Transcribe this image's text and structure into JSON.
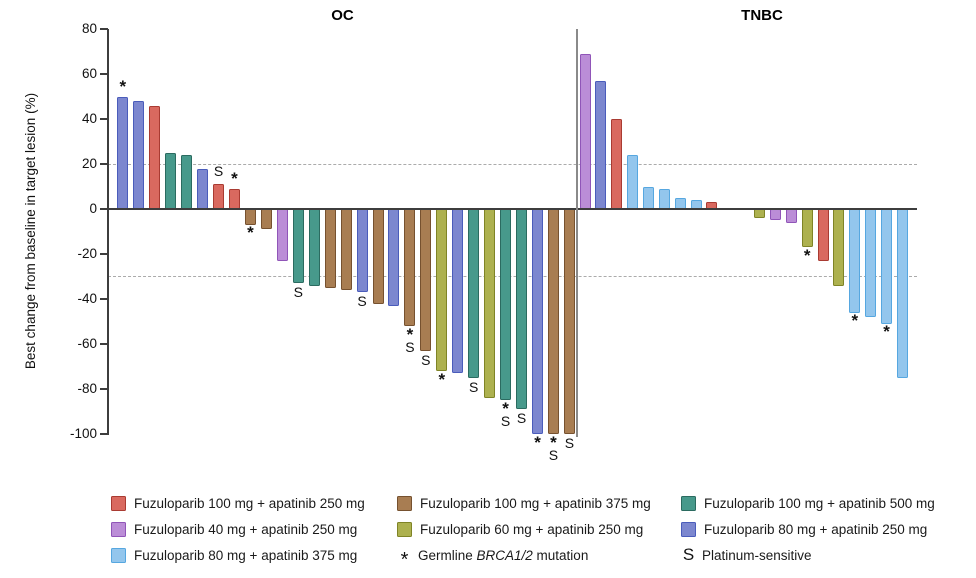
{
  "chart_data": {
    "type": "bar",
    "variant": "waterfall",
    "ylabel": "Best change from baseline in target lesion (%)",
    "ylim": [
      -100,
      80
    ],
    "yticks": [
      80,
      60,
      40,
      20,
      0,
      -20,
      -40,
      -60,
      -80,
      -100
    ],
    "reference_lines": [
      20,
      -30
    ],
    "grid": false,
    "treatments": {
      "fuzuloparib-100-apatinib-250": {
        "label": "Fuzuloparib 100 mg + apatinib 250 mg",
        "fill": "#D9695F",
        "edge": "#A93B32"
      },
      "fuzuloparib-100-apatinib-375": {
        "label": "Fuzuloparib 100 mg + apatinib 375 mg",
        "fill": "#A87D52",
        "edge": "#76512F"
      },
      "fuzuloparib-100-apatinib-500": {
        "label": "Fuzuloparib 100 mg + apatinib 500 mg",
        "fill": "#47998B",
        "edge": "#2B6B60"
      },
      "fuzuloparib-40-apatinib-250": {
        "label": "Fuzuloparib 40 mg + apatinib 250 mg",
        "fill": "#BB8DD7",
        "edge": "#9055B8"
      },
      "fuzuloparib-60-apatinib-250": {
        "label": "Fuzuloparib 60 mg + apatinib 250 mg",
        "fill": "#ADB14F",
        "edge": "#7F8426"
      },
      "fuzuloparib-80-apatinib-250": {
        "label": "Fuzuloparib 80 mg + apatinib 250 mg",
        "fill": "#7C87CF",
        "edge": "#4A5CBB"
      },
      "fuzuloparib-80-apatinib-375": {
        "label": "Fuzuloparib 80 mg + apatinib 375 mg",
        "fill": "#93C6ED",
        "edge": "#56A7E0"
      }
    },
    "markers": {
      "asterisk": {
        "symbol": "*",
        "label_parts": [
          {
            "text": "Germline "
          },
          {
            "text": "BRCA1/2",
            "italic": true
          },
          {
            "text": " mutation"
          }
        ]
      },
      "s": {
        "symbol": "S",
        "label_parts": [
          {
            "text": "Platinum-sensitive"
          }
        ]
      }
    },
    "panels": [
      {
        "title": "OC",
        "bars": [
          {
            "slot": 0,
            "value": 50,
            "treatment": "fuzuloparib-80-apatinib-250",
            "mark": "*"
          },
          {
            "slot": 1,
            "value": 48,
            "treatment": "fuzuloparib-80-apatinib-250",
            "mark": ""
          },
          {
            "slot": 2,
            "value": 46,
            "treatment": "fuzuloparib-100-apatinib-250",
            "mark": ""
          },
          {
            "slot": 3,
            "value": 25,
            "treatment": "fuzuloparib-100-apatinib-500",
            "mark": ""
          },
          {
            "slot": 4,
            "value": 24,
            "treatment": "fuzuloparib-100-apatinib-500",
            "mark": ""
          },
          {
            "slot": 5,
            "value": 18,
            "treatment": "fuzuloparib-80-apatinib-250",
            "mark": ""
          },
          {
            "slot": 6,
            "value": 11,
            "treatment": "fuzuloparib-100-apatinib-250",
            "mark": "S"
          },
          {
            "slot": 7,
            "value": 9,
            "treatment": "fuzuloparib-100-apatinib-250",
            "mark": "*"
          },
          {
            "slot": 8,
            "value": -7,
            "treatment": "fuzuloparib-100-apatinib-375",
            "mark": "*"
          },
          {
            "slot": 9,
            "value": -9,
            "treatment": "fuzuloparib-100-apatinib-375",
            "mark": ""
          },
          {
            "slot": 10,
            "value": -23,
            "treatment": "fuzuloparib-40-apatinib-250",
            "mark": ""
          },
          {
            "slot": 11,
            "value": -33,
            "treatment": "fuzuloparib-100-apatinib-500",
            "mark": "S"
          },
          {
            "slot": 12,
            "value": -34,
            "treatment": "fuzuloparib-100-apatinib-500",
            "mark": ""
          },
          {
            "slot": 13,
            "value": -35,
            "treatment": "fuzuloparib-100-apatinib-375",
            "mark": ""
          },
          {
            "slot": 14,
            "value": -36,
            "treatment": "fuzuloparib-100-apatinib-375",
            "mark": ""
          },
          {
            "slot": 15,
            "value": -37,
            "treatment": "fuzuloparib-80-apatinib-250",
            "mark": "S"
          },
          {
            "slot": 16,
            "value": -42,
            "treatment": "fuzuloparib-100-apatinib-375",
            "mark": ""
          },
          {
            "slot": 17,
            "value": -43,
            "treatment": "fuzuloparib-80-apatinib-250",
            "mark": ""
          },
          {
            "slot": 18,
            "value": -52,
            "treatment": "fuzuloparib-100-apatinib-375",
            "mark": "*S"
          },
          {
            "slot": 19,
            "value": -63,
            "treatment": "fuzuloparib-100-apatinib-375",
            "mark": "S"
          },
          {
            "slot": 20,
            "value": -72,
            "treatment": "fuzuloparib-60-apatinib-250",
            "mark": "*"
          },
          {
            "slot": 21,
            "value": -73,
            "treatment": "fuzuloparib-80-apatinib-250",
            "mark": ""
          },
          {
            "slot": 22,
            "value": -75,
            "treatment": "fuzuloparib-100-apatinib-500",
            "mark": "S"
          },
          {
            "slot": 23,
            "value": -84,
            "treatment": "fuzuloparib-60-apatinib-250",
            "mark": ""
          },
          {
            "slot": 24,
            "value": -85,
            "treatment": "fuzuloparib-100-apatinib-500",
            "mark": "*S"
          },
          {
            "slot": 25,
            "value": -89,
            "treatment": "fuzuloparib-100-apatinib-500",
            "mark": "S"
          },
          {
            "slot": 26,
            "value": -100,
            "treatment": "fuzuloparib-80-apatinib-250",
            "mark": "*"
          },
          {
            "slot": 27,
            "value": -100,
            "treatment": "fuzuloparib-100-apatinib-375",
            "mark": "*S"
          },
          {
            "slot": 28,
            "value": -100,
            "treatment": "fuzuloparib-100-apatinib-375",
            "mark": "S"
          }
        ]
      },
      {
        "title": "TNBC",
        "bars": [
          {
            "slot": 0,
            "value": 69,
            "treatment": "fuzuloparib-40-apatinib-250",
            "mark": ""
          },
          {
            "slot": 1,
            "value": 57,
            "treatment": "fuzuloparib-80-apatinib-250",
            "mark": ""
          },
          {
            "slot": 2,
            "value": 40,
            "treatment": "fuzuloparib-100-apatinib-250",
            "mark": ""
          },
          {
            "slot": 3,
            "value": 24,
            "treatment": "fuzuloparib-80-apatinib-375",
            "mark": ""
          },
          {
            "slot": 4,
            "value": 10,
            "treatment": "fuzuloparib-80-apatinib-375",
            "mark": ""
          },
          {
            "slot": 5,
            "value": 9,
            "treatment": "fuzuloparib-80-apatinib-375",
            "mark": ""
          },
          {
            "slot": 6,
            "value": 5,
            "treatment": "fuzuloparib-80-apatinib-375",
            "mark": ""
          },
          {
            "slot": 7,
            "value": 4,
            "treatment": "fuzuloparib-80-apatinib-375",
            "mark": ""
          },
          {
            "slot": 8,
            "value": 3,
            "treatment": "fuzuloparib-100-apatinib-250",
            "mark": ""
          },
          {
            "slot": 11,
            "value": -4,
            "treatment": "fuzuloparib-60-apatinib-250",
            "mark": ""
          },
          {
            "slot": 12,
            "value": -5,
            "treatment": "fuzuloparib-40-apatinib-250",
            "mark": ""
          },
          {
            "slot": 13,
            "value": -6,
            "treatment": "fuzuloparib-40-apatinib-250",
            "mark": ""
          },
          {
            "slot": 14,
            "value": -17,
            "treatment": "fuzuloparib-60-apatinib-250",
            "mark": "*"
          },
          {
            "slot": 15,
            "value": -23,
            "treatment": "fuzuloparib-100-apatinib-250",
            "mark": ""
          },
          {
            "slot": 16,
            "value": -34,
            "treatment": "fuzuloparib-60-apatinib-250",
            "mark": ""
          },
          {
            "slot": 17,
            "value": -46,
            "treatment": "fuzuloparib-80-apatinib-375",
            "mark": "*"
          },
          {
            "slot": 18,
            "value": -48,
            "treatment": "fuzuloparib-80-apatinib-375",
            "mark": ""
          },
          {
            "slot": 19,
            "value": -51,
            "treatment": "fuzuloparib-80-apatinib-375",
            "mark": "*"
          },
          {
            "slot": 20,
            "value": -75,
            "treatment": "fuzuloparib-80-apatinib-375",
            "mark": ""
          }
        ]
      }
    ]
  },
  "legend": {
    "order": [
      "fuzuloparib-100-apatinib-250",
      "fuzuloparib-100-apatinib-375",
      "fuzuloparib-100-apatinib-500",
      "fuzuloparib-40-apatinib-250",
      "fuzuloparib-60-apatinib-250",
      "fuzuloparib-80-apatinib-250",
      "fuzuloparib-80-apatinib-375",
      "asterisk",
      "s"
    ]
  }
}
